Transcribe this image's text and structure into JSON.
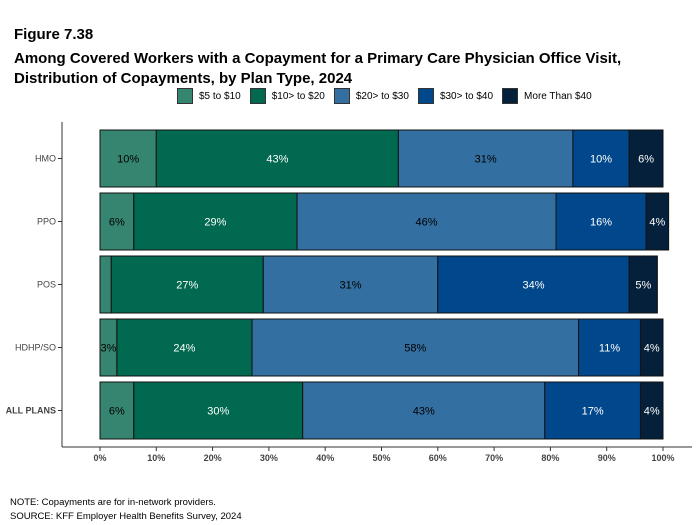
{
  "figure_label": "Figure 7.38",
  "title_line1": "Among Covered Workers with a Copayment for a Primary Care Physician Office Visit,",
  "title_line2": "Distribution of Copayments, by Plan Type, 2024",
  "note": "NOTE: Copayments are for in-network providers.",
  "source": "SOURCE: KFF Employer Health Benefits Survey, 2024",
  "chart_data": {
    "type": "bar",
    "orientation": "horizontal",
    "stacked": true,
    "categories": [
      "HMO",
      "PPO",
      "POS",
      "HDHP/SO",
      "ALL PLANS"
    ],
    "series": [
      {
        "name": "$5 to $10",
        "color": "#368570",
        "label_color": "#000000",
        "values": [
          10,
          6,
          2,
          3,
          6
        ],
        "labels": [
          "10%",
          "6%",
          "",
          "3%",
          "6%"
        ]
      },
      {
        "name": "$10> to $20",
        "color": "#006950",
        "label_color": "#ffffff",
        "values": [
          43,
          29,
          27,
          24,
          30
        ],
        "labels": [
          "43%",
          "29%",
          "27%",
          "24%",
          "30%"
        ]
      },
      {
        "name": "$20> to $30",
        "color": "#336fa0",
        "label_color": "#000000",
        "values": [
          31,
          46,
          31,
          58,
          43
        ],
        "labels": [
          "31%",
          "46%",
          "31%",
          "58%",
          "43%"
        ]
      },
      {
        "name": "$30> to $40",
        "color": "#00478b",
        "label_color": "#ffffff",
        "values": [
          10,
          16,
          34,
          11,
          17
        ],
        "labels": [
          "10%",
          "16%",
          "34%",
          "11%",
          "17%"
        ]
      },
      {
        "name": "More Than $40",
        "color": "#05203a",
        "label_color": "#ffffff",
        "values": [
          6,
          4,
          5,
          4,
          4
        ],
        "labels": [
          "6%",
          "4%",
          "5%",
          "4%",
          "4%"
        ]
      }
    ],
    "xlim": [
      0,
      100
    ],
    "xticks": [
      "0%",
      "10%",
      "20%",
      "30%",
      "40%",
      "50%",
      "60%",
      "70%",
      "80%",
      "90%",
      "100%"
    ],
    "legend": "top",
    "grid": false
  }
}
